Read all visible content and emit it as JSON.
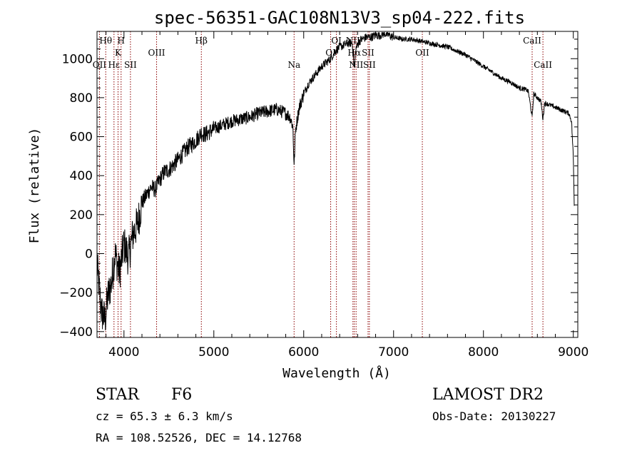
{
  "chart_data": {
    "type": "line",
    "title": "spec-56351-GAC108N13V3_sp04-222.fits",
    "xlabel": "Wavelength (Å)",
    "ylabel": "Flux (relative)",
    "xlim": [
      3700,
      9050
    ],
    "ylim": [
      -430,
      1140
    ],
    "x_ticks": [
      4000,
      5000,
      6000,
      7000,
      8000,
      9000
    ],
    "y_ticks": [
      -400,
      -200,
      0,
      200,
      400,
      600,
      800,
      1000
    ],
    "grid": false,
    "colors": {
      "spectrum": "#000000",
      "line_markers": "#8b0000"
    },
    "series": [
      {
        "x": [
          3700,
          3750,
          3790,
          3820,
          3860,
          3900,
          3950,
          4000,
          4050,
          4100,
          4150,
          4200,
          4250,
          4300,
          4350,
          4400,
          4450,
          4500,
          4600,
          4700,
          4800,
          4861,
          4900,
          5000,
          5100,
          5200,
          5300,
          5400,
          5500,
          5600,
          5700,
          5800,
          5850,
          5880,
          5893,
          5910,
          5950,
          6000,
          6050,
          6100,
          6150,
          6200,
          6250,
          6300,
          6350,
          6400,
          6450,
          6500,
          6540,
          6563,
          6580,
          6620,
          6650,
          6700,
          6750,
          6800,
          6850,
          6900,
          6950,
          7000,
          7100,
          7200,
          7300,
          7400,
          7500,
          7600,
          7700,
          7800,
          7900,
          8000,
          8100,
          8200,
          8300,
          8400,
          8480,
          8500,
          8542,
          8560,
          8600,
          8640,
          8662,
          8680,
          8700,
          8750,
          8800,
          8850,
          8900,
          8950,
          8980,
          9000,
          9010
        ],
        "y": [
          -60,
          -300,
          -340,
          -220,
          -150,
          0,
          -100,
          50,
          -20,
          100,
          150,
          260,
          300,
          340,
          330,
          380,
          420,
          430,
          480,
          540,
          580,
          620,
          610,
          640,
          660,
          680,
          690,
          700,
          720,
          730,
          740,
          720,
          700,
          650,
          450,
          640,
          750,
          820,
          870,
          900,
          930,
          960,
          980,
          1000,
          1040,
          1060,
          1070,
          1080,
          1080,
          950,
          1050,
          1090,
          1100,
          1110,
          1110,
          1120,
          1120,
          1130,
          1120,
          1110,
          1100,
          1100,
          1090,
          1080,
          1070,
          1060,
          1040,
          1020,
          990,
          960,
          930,
          900,
          880,
          850,
          840,
          830,
          700,
          820,
          800,
          780,
          690,
          770,
          770,
          760,
          750,
          740,
          730,
          720,
          680,
          500,
          250
        ]
      }
    ],
    "lines": [
      {
        "name": "OII",
        "x": 3727,
        "pos": "low"
      },
      {
        "name": "Hθ",
        "x": 3797,
        "pos": "high"
      },
      {
        "name": "Hε",
        "x": 3889,
        "pos": "low"
      },
      {
        "name": "H",
        "x": 3968,
        "pos": "high"
      },
      {
        "name": "K",
        "x": 3934,
        "pos": "mid"
      },
      {
        "name": "SII",
        "x": 4072,
        "pos": "low"
      },
      {
        "name": "OIII",
        "x": 4363,
        "pos": "mid"
      },
      {
        "name": "Hβ",
        "x": 4861,
        "pos": "high"
      },
      {
        "name": "Na",
        "x": 5893,
        "pos": "low"
      },
      {
        "name": "OI",
        "x": 6300,
        "pos": "mid"
      },
      {
        "name": "OI",
        "x": 6364,
        "pos": "high"
      },
      {
        "name": "NII",
        "x": 6548,
        "pos": "high"
      },
      {
        "name": "Hα",
        "x": 6563,
        "pos": "mid"
      },
      {
        "name": "NII",
        "x": 6583,
        "pos": "low"
      },
      {
        "name": "SII",
        "x": 6716,
        "pos": "mid"
      },
      {
        "name": "SII",
        "x": 6731,
        "pos": "low"
      },
      {
        "name": "OII",
        "x": 7320,
        "pos": "mid"
      },
      {
        "name": "CaII",
        "x": 8542,
        "pos": "high"
      },
      {
        "name": "CaII",
        "x": 8662,
        "pos": "low"
      }
    ]
  },
  "info": {
    "object_type": "STAR",
    "subclass": "F6",
    "cz": "cz = 65.3 ± 6.3 km/s",
    "coords": "RA = 108.52526, DEC =  14.12768",
    "survey": "LAMOST DR2",
    "obs_date": "Obs-Date: 20130227"
  }
}
